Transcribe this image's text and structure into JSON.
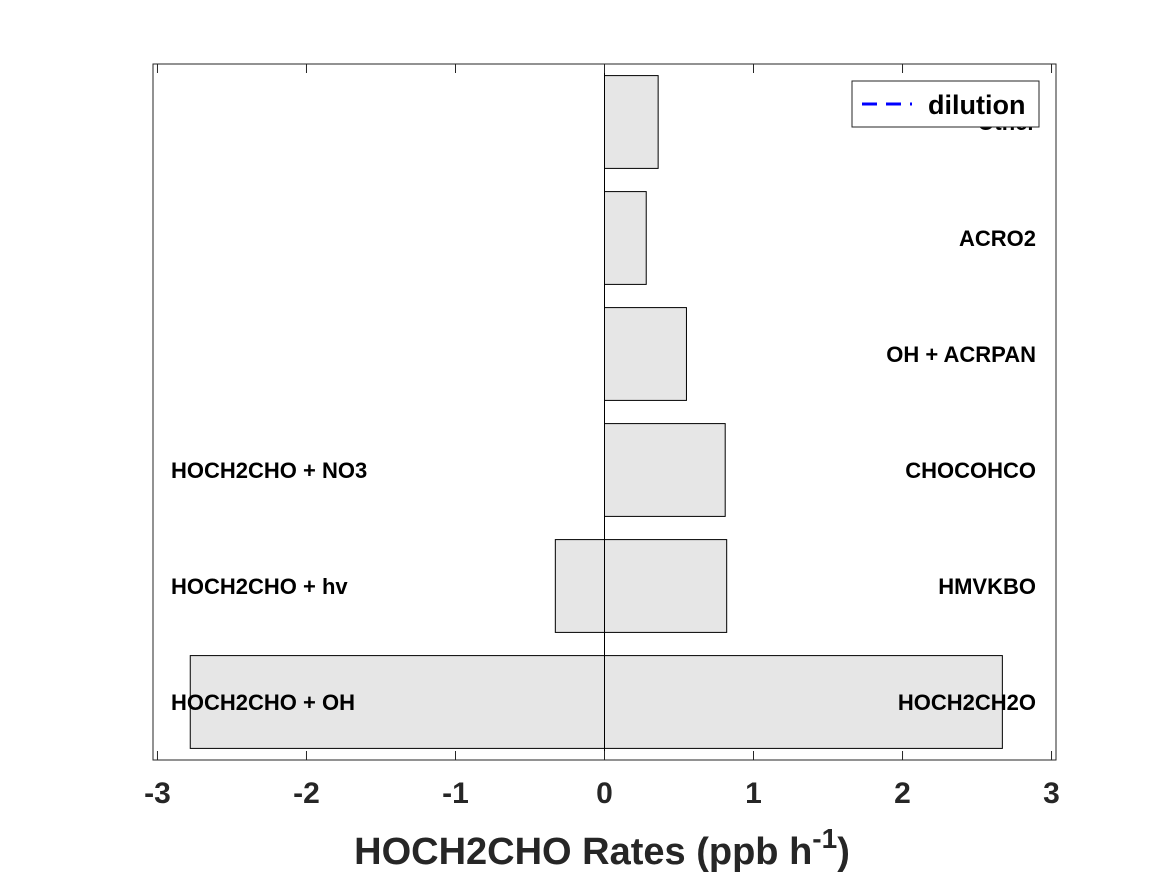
{
  "chart_data": {
    "type": "bar",
    "orientation": "horizontal",
    "stacked": "diverging",
    "xlabel_main": "HOCH2CHO Rates (ppb h",
    "xlabel_sup": "-1",
    "xlabel_end": ")",
    "xlim": [
      -3.03,
      3.03
    ],
    "xticks": [
      -3,
      -2,
      -1,
      0,
      1,
      2,
      3
    ],
    "xtick_labels": [
      "-3",
      "-2",
      "-1",
      "0",
      "1",
      "2",
      "3"
    ],
    "grid": false,
    "legend": {
      "position": "top-right",
      "entries": [
        {
          "label": "dilution",
          "style": "dashed",
          "color": "#0000ff"
        }
      ]
    },
    "bar_color": "#e6e6e6",
    "bar_edge_color": "#000000",
    "positive_bars": [
      {
        "label": "HOCH2CH2O",
        "value": 2.67
      },
      {
        "label": "HMVKBO",
        "value": 0.82
      },
      {
        "label": "CHOCOHCO",
        "value": 0.81
      },
      {
        "label": "OH + ACRPAN",
        "value": 0.55
      },
      {
        "label": "ACRO2",
        "value": 0.28
      },
      {
        "label": "Other",
        "value": 0.36
      }
    ],
    "negative_bars": [
      {
        "label": "HOCH2CHO + OH",
        "value": -2.78
      },
      {
        "label": "HOCH2CHO + hv",
        "value": -0.33
      },
      {
        "label": "HOCH2CHO + NO3",
        "value": 0.0
      }
    ]
  }
}
